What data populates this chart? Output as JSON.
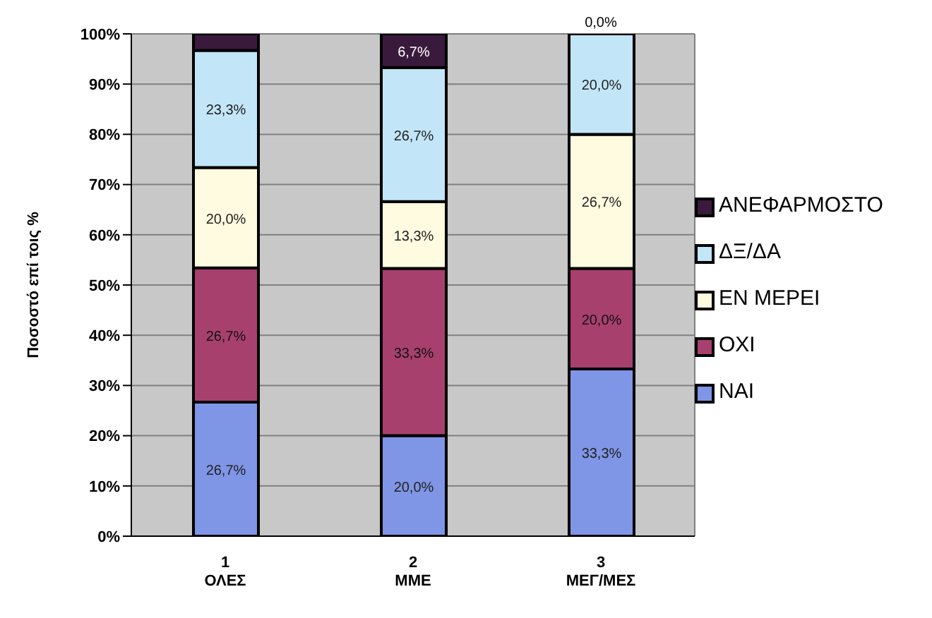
{
  "chart_data": {
    "type": "bar",
    "stacked": true,
    "ylabel": "Ποσοστό επί τοις %",
    "categories": [
      "1\nΟΛΕΣ",
      "2\nΜΜΕ",
      "3\nΜΕΓ/ΜΕΣ"
    ],
    "ylim": [
      0,
      100
    ],
    "yticks": [
      {
        "value": 0,
        "label": "0%"
      },
      {
        "value": 10,
        "label": "10%"
      },
      {
        "value": 20,
        "label": "20%"
      },
      {
        "value": 30,
        "label": "30%"
      },
      {
        "value": 40,
        "label": "40%"
      },
      {
        "value": 50,
        "label": "50%"
      },
      {
        "value": 60,
        "label": "60%"
      },
      {
        "value": 70,
        "label": "70%"
      },
      {
        "value": 80,
        "label": "80%"
      },
      {
        "value": 90,
        "label": "90%"
      },
      {
        "value": 100,
        "label": "100%"
      }
    ],
    "grid": true,
    "legend": "right",
    "series": [
      {
        "name": "ΝΑΙ",
        "color": "#7f95e6",
        "values": [
          26.7,
          20.0,
          33.3
        ],
        "value_labels": [
          "26,7%",
          "20,0%",
          "33,3%"
        ]
      },
      {
        "name": "ΟΧΙ",
        "color": "#a8406e",
        "values": [
          26.7,
          33.3,
          20.0
        ],
        "value_labels": [
          "26,7%",
          "33,3%",
          "20,0%"
        ]
      },
      {
        "name": "ΕΝ ΜΕΡΕΙ",
        "color": "#fffbe0",
        "values": [
          20.0,
          13.3,
          26.7
        ],
        "value_labels": [
          "20,0%",
          "13,3%",
          "26,7%"
        ]
      },
      {
        "name": "ΔΞ/ΔΑ",
        "color": "#c2e6f8",
        "values": [
          23.3,
          26.7,
          20.0
        ],
        "value_labels": [
          "23,3%",
          "26,7%",
          "20,0%"
        ]
      },
      {
        "name": "ΑΝΕΦΑΡΜΟΣΤΟ",
        "color": "#3a1a3c",
        "values": [
          3.3,
          6.7,
          0.0
        ],
        "value_labels": [
          null,
          "6,7%",
          "0,0%"
        ]
      }
    ]
  }
}
